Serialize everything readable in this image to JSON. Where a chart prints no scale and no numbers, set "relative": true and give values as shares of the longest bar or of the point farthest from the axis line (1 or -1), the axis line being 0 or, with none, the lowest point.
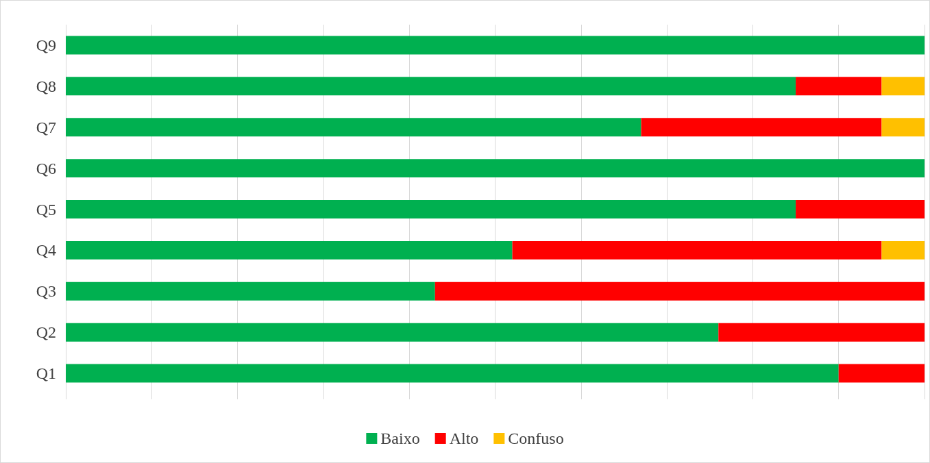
{
  "chart_data": {
    "type": "bar",
    "orientation": "horizontal",
    "stacked": true,
    "relative": true,
    "grid": "x",
    "legend": "bottom",
    "categories": [
      "Q9",
      "Q8",
      "Q7",
      "Q6",
      "Q5",
      "Q4",
      "Q3",
      "Q2",
      "Q1"
    ],
    "series": [
      {
        "name": "Baixo",
        "color": "#00b050",
        "values": [
          1,
          0.85,
          0.67,
          1,
          0.85,
          0.52,
          0.43,
          0.76,
          0.9
        ]
      },
      {
        "name": "Alto",
        "color": "#ff0000",
        "values": [
          null,
          0.1,
          0.28,
          null,
          0.15,
          0.43,
          0.57,
          0.24,
          0.1
        ]
      },
      {
        "name": "Confuso",
        "color": "#ffc000",
        "values": [
          null,
          0.05,
          0.05,
          null,
          null,
          0.05,
          null,
          null,
          null
        ]
      }
    ]
  }
}
